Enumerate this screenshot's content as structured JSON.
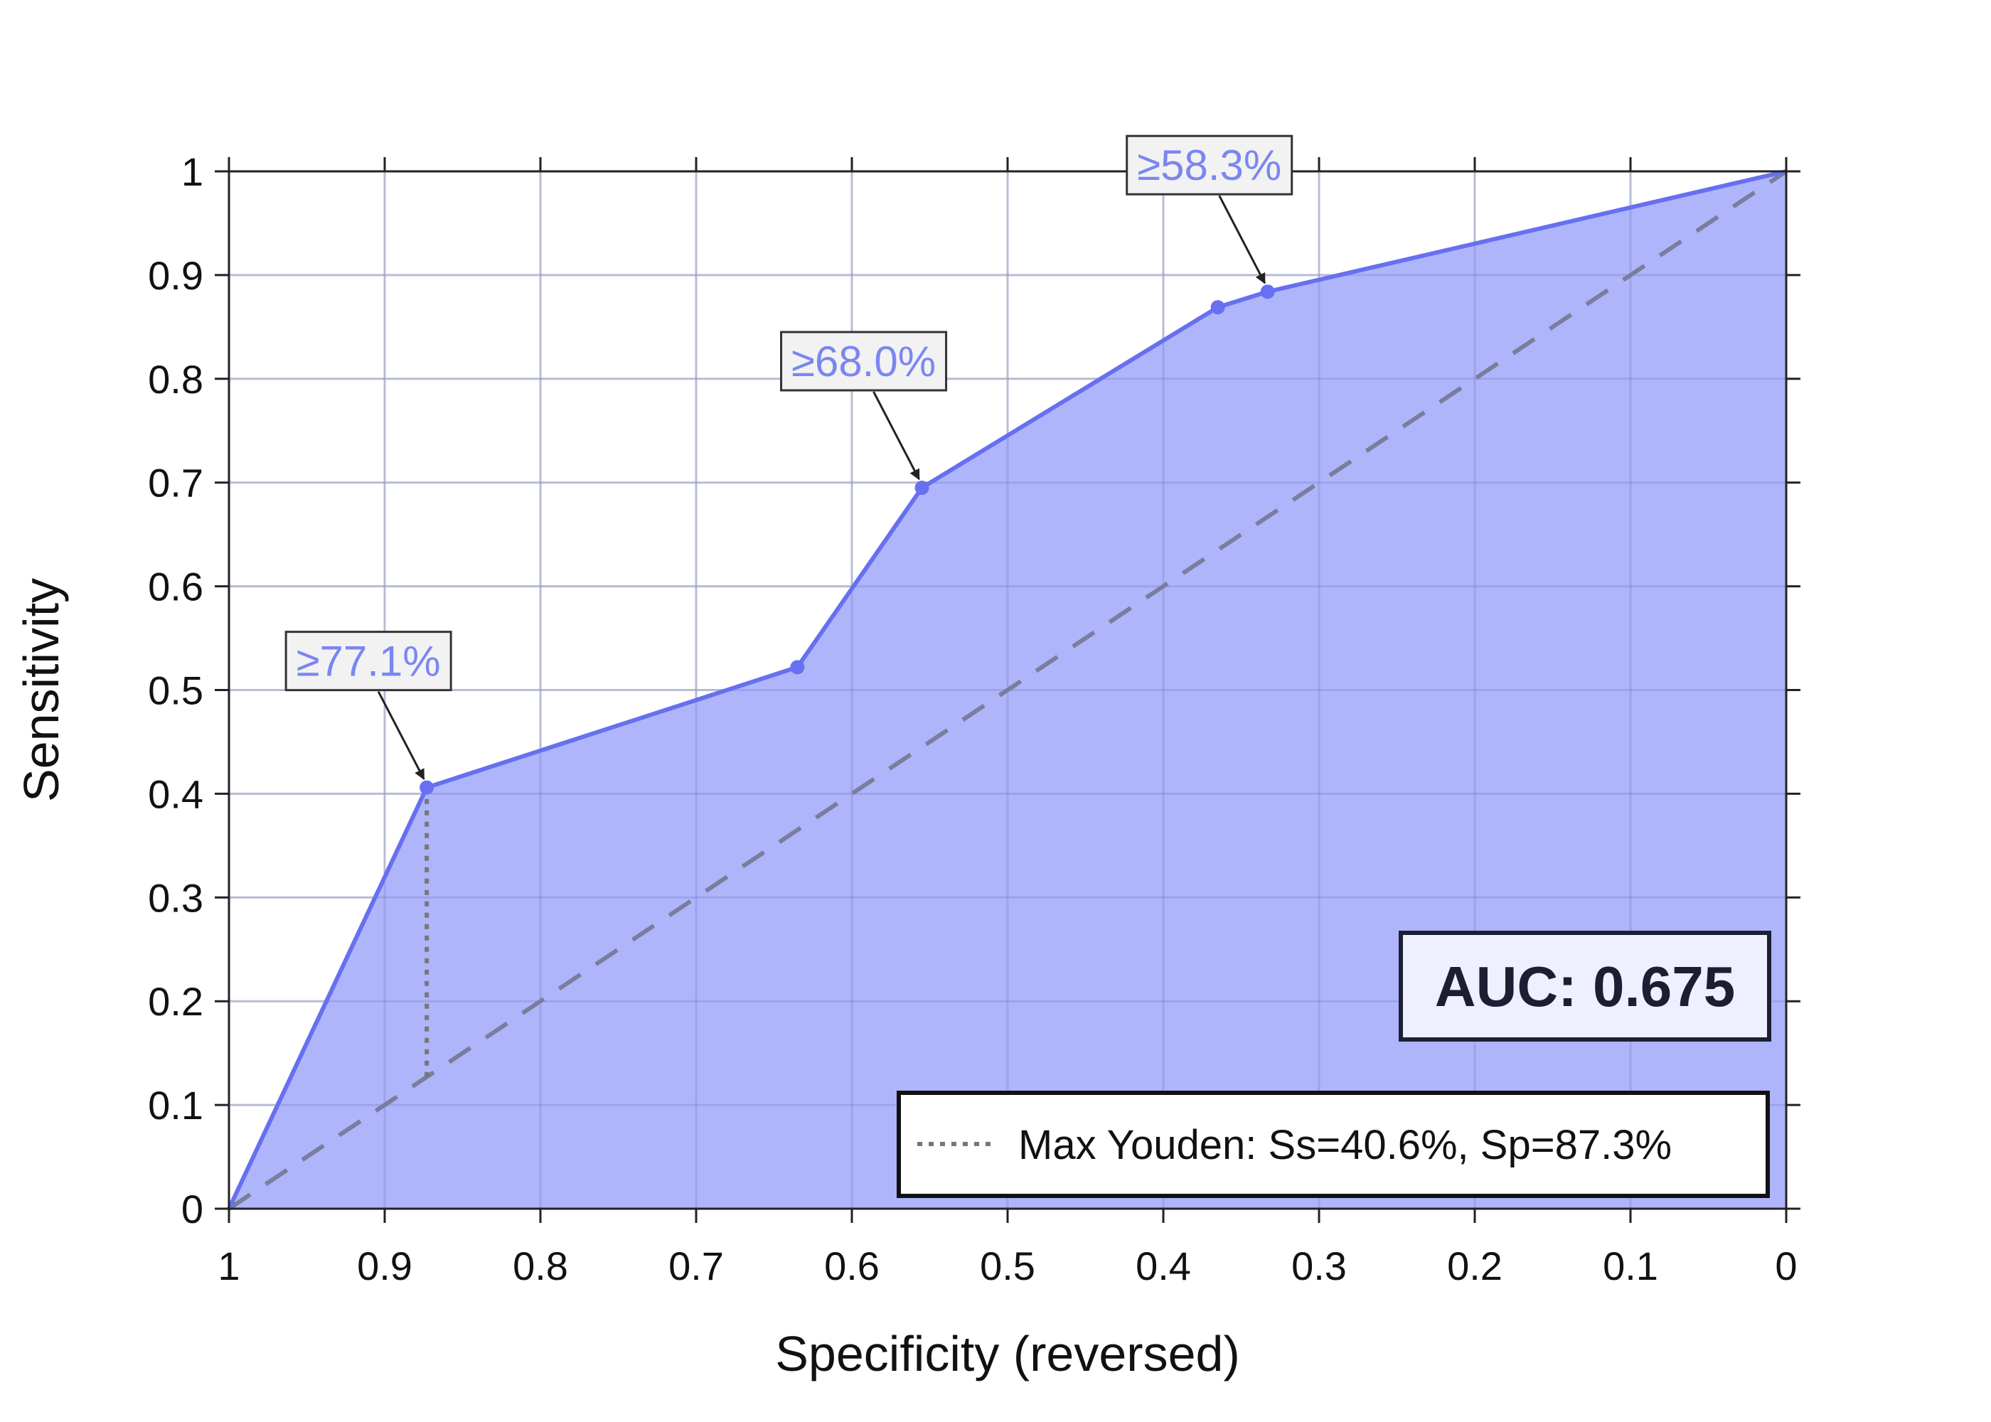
{
  "chart_data": {
    "type": "area",
    "xlabel": "Specificity (reversed)",
    "ylabel": "Sensitivity",
    "xlim": [
      1,
      0
    ],
    "ylim": [
      0,
      1
    ],
    "x_reversed": true,
    "grid": true,
    "x_ticks": [
      "1",
      "0.9",
      "0.8",
      "0.7",
      "0.6",
      "0.5",
      "0.4",
      "0.3",
      "0.2",
      "0.1",
      "0"
    ],
    "y_ticks": [
      "0",
      "0.1",
      "0.2",
      "0.3",
      "0.4",
      "0.5",
      "0.6",
      "0.7",
      "0.8",
      "0.9",
      "1"
    ],
    "series": [
      {
        "x": [
          1.0,
          0.873,
          0.635,
          0.555,
          0.365,
          0.333,
          0.0
        ],
        "y": [
          0.0,
          0.406,
          0.522,
          0.695,
          0.869,
          0.884,
          1.0
        ],
        "markers": [
          0.873,
          0.635,
          0.555,
          0.365,
          0.333
        ],
        "color": "#6670f0",
        "fill": "#aeb5fa"
      }
    ],
    "reference_line": {
      "x": [
        1,
        0
      ],
      "y": [
        0,
        1
      ],
      "style": "dashed",
      "color": "#7a7d9c"
    },
    "youden": {
      "x": 0.873,
      "y_from": 0.127,
      "y_to": 0.406,
      "style": "dotted",
      "color": "#777777"
    },
    "annotations": [
      {
        "text": "≥77.1%",
        "x": 0.873,
        "y": 0.406
      },
      {
        "text": "≥68.0%",
        "x": 0.555,
        "y": 0.695
      },
      {
        "text": "≥58.3%",
        "x": 0.333,
        "y": 0.884
      }
    ],
    "auc_label": "AUC: 0.675",
    "legend": {
      "placement": "bottom-right",
      "entries": [
        {
          "label": "Max Youden: Ss=40.6%, Sp=87.3%",
          "style": "dotted"
        }
      ]
    }
  }
}
